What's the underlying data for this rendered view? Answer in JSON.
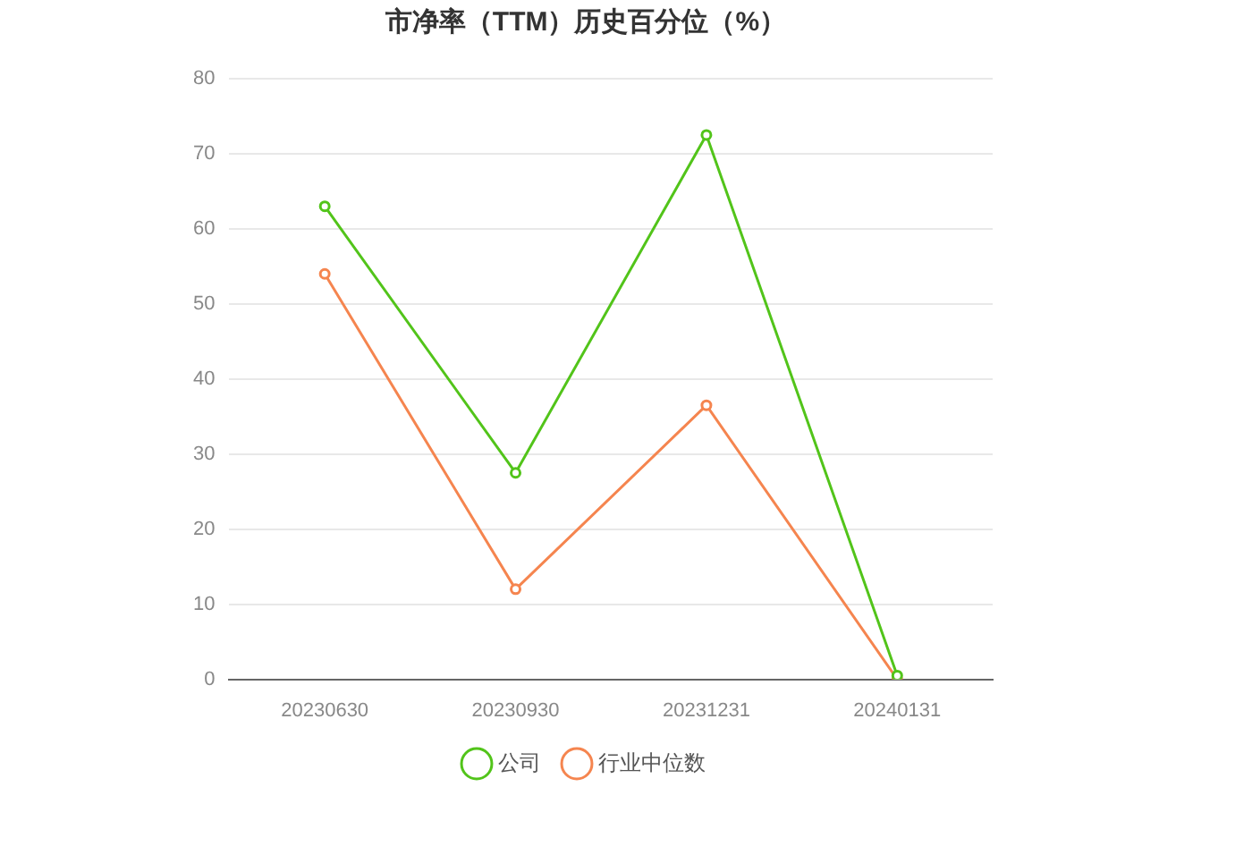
{
  "chart_data": {
    "type": "line",
    "title": "市净率（TTM）历史百分位（%）",
    "categories": [
      "20230630",
      "20230930",
      "20231231",
      "20240131"
    ],
    "series": [
      {
        "name": "公司",
        "color": "#52c41a",
        "values": [
          63,
          27.5,
          72.5,
          0.5
        ]
      },
      {
        "name": "行业中位数",
        "color": "#f5854f",
        "values": [
          54,
          12,
          36.5,
          0
        ]
      }
    ],
    "ylim": [
      0,
      80
    ],
    "yticks": [
      0,
      10,
      20,
      30,
      40,
      50,
      60,
      70,
      80
    ],
    "grid": "y",
    "legend": "bottom",
    "marker": "circle",
    "line_style": "solid"
  }
}
